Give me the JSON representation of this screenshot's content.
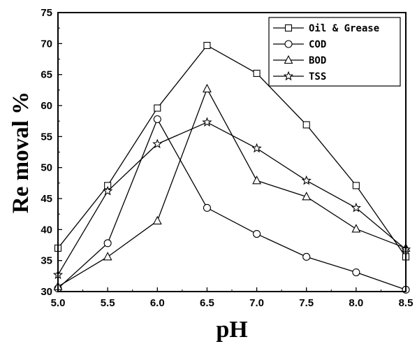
{
  "chart_data": {
    "type": "line",
    "title": "",
    "xlabel": "pH",
    "ylabel": "Re moval %",
    "xlim": [
      5.0,
      8.5
    ],
    "ylim": [
      30,
      75
    ],
    "xticks": [
      "5.0",
      "5.5",
      "6.0",
      "6.5",
      "7.0",
      "7.5",
      "8.0",
      "8.5"
    ],
    "yticks": [
      "30",
      "35",
      "40",
      "45",
      "50",
      "55",
      "60",
      "65",
      "70",
      "75"
    ],
    "grid": false,
    "legend_position": "top-right",
    "x": [
      5.0,
      5.5,
      6.0,
      6.5,
      7.0,
      7.5,
      8.0,
      8.5
    ],
    "series": [
      {
        "name": "Oil & Grease",
        "marker": "square",
        "values": [
          37.0,
          47.1,
          59.6,
          69.7,
          65.2,
          56.9,
          47.1,
          35.6
        ]
      },
      {
        "name": "COD",
        "marker": "circle",
        "values": [
          30.5,
          37.8,
          57.8,
          43.5,
          39.3,
          35.6,
          33.1,
          30.3
        ]
      },
      {
        "name": "BOD",
        "marker": "triangle",
        "values": [
          30.8,
          35.6,
          41.4,
          62.7,
          47.9,
          45.3,
          40.1,
          37.0
        ]
      },
      {
        "name": "TSS",
        "marker": "star",
        "values": [
          32.7,
          46.2,
          53.8,
          57.3,
          53.1,
          47.9,
          43.5,
          36.8
        ]
      }
    ]
  }
}
